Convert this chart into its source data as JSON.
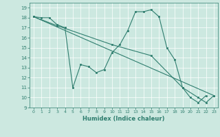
{
  "xlabel": "Humidex (Indice chaleur)",
  "bg_color": "#cce8e0",
  "line_color": "#2e7d6e",
  "grid_color": "#b8d8d0",
  "xlim": [
    -0.5,
    23.5
  ],
  "ylim": [
    9,
    19.5
  ],
  "xticks": [
    0,
    1,
    2,
    3,
    4,
    5,
    6,
    7,
    8,
    9,
    10,
    11,
    12,
    13,
    14,
    15,
    16,
    17,
    18,
    19,
    20,
    21,
    22,
    23
  ],
  "yticks": [
    9,
    10,
    11,
    12,
    13,
    14,
    15,
    16,
    17,
    18,
    19
  ],
  "line1_x": [
    0,
    1,
    2,
    3,
    4,
    5,
    6,
    7,
    8,
    9,
    10,
    11,
    12,
    13,
    14,
    15,
    16,
    17,
    18,
    19,
    20,
    21,
    22
  ],
  "line1_y": [
    18.1,
    18.0,
    18.0,
    17.3,
    17.0,
    11.0,
    13.3,
    13.1,
    12.5,
    12.8,
    14.5,
    15.3,
    16.7,
    18.6,
    18.6,
    18.8,
    18.1,
    15.0,
    13.8,
    11.0,
    10.0,
    9.5,
    10.2
  ],
  "line2_x": [
    0,
    3,
    10,
    15,
    19,
    21,
    22,
    23
  ],
  "line2_y": [
    18.1,
    17.2,
    15.3,
    14.2,
    11.0,
    10.0,
    9.5,
    10.2
  ],
  "line3_x": [
    0,
    23
  ],
  "line3_y": [
    18.1,
    10.2
  ]
}
